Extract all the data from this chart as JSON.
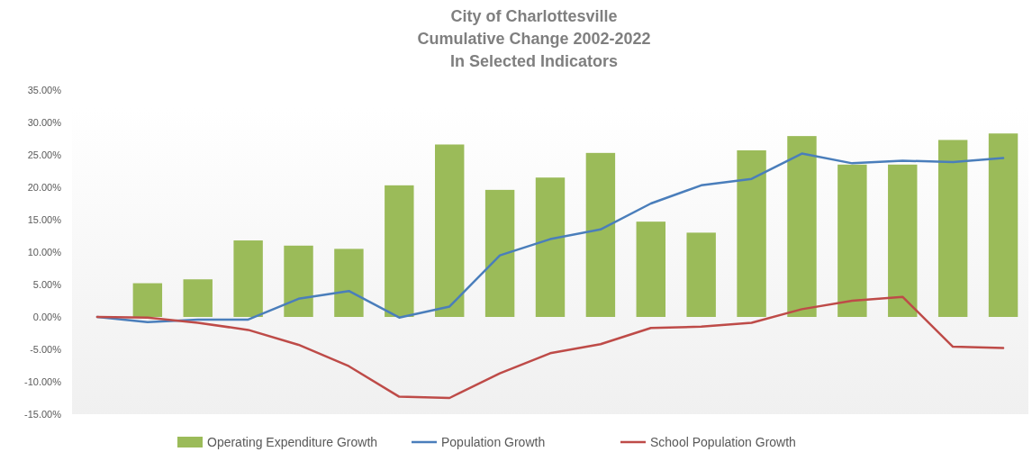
{
  "chart_data": {
    "type": "bar",
    "title": "City of Charlottesville\nCumulative Change 2002-2022\nIn Selected Indicators",
    "categories": [
      null,
      null,
      null,
      null,
      null,
      null,
      null,
      null,
      null,
      null,
      null,
      null,
      null,
      null,
      null,
      null,
      null,
      null,
      null
    ],
    "series": [
      {
        "name": "Operating Expenditure Growth",
        "color": "#9bbb59",
        "values": [
          null,
          5.2,
          5.8,
          11.8,
          11.0,
          10.5,
          20.3,
          26.6,
          19.6,
          21.5,
          25.3,
          14.7,
          13.0,
          25.7,
          27.9,
          23.5,
          23.5,
          27.3,
          28.3
        ]
      },
      {
        "name": "Population Growth",
        "type": "line",
        "color": "#4a7ebb",
        "values": [
          0,
          -0.8,
          -0.4,
          -0.4,
          2.8,
          4.0,
          -0.1,
          1.6,
          9.5,
          12.0,
          13.5,
          17.5,
          20.3,
          21.3,
          25.2,
          23.7,
          24.1,
          23.9,
          24.5
        ]
      },
      {
        "name": "School Population Growth",
        "type": "line",
        "color": "#be4b48",
        "values": [
          0,
          -0.1,
          -0.9,
          -2.0,
          -4.3,
          -7.6,
          -12.3,
          -12.5,
          -8.7,
          -5.6,
          -4.2,
          -1.7,
          -1.5,
          -0.9,
          1.2,
          2.5,
          3.1,
          -4.6,
          -4.8
        ]
      }
    ],
    "ylim": [
      -15,
      35
    ],
    "yticks": [
      {
        "value": -15,
        "label": "-15.00%"
      },
      {
        "value": -10,
        "label": "-10.00%"
      },
      {
        "value": -5,
        "label": "-5.00%"
      },
      {
        "value": 0,
        "label": "0.00%"
      },
      {
        "value": 5,
        "label": "5.00%"
      },
      {
        "value": 10,
        "label": "10.00%"
      },
      {
        "value": 15,
        "label": "15.00%"
      },
      {
        "value": 20,
        "label": "20.00%"
      },
      {
        "value": 25,
        "label": "25.00%"
      },
      {
        "value": 30,
        "label": "30.00%"
      },
      {
        "value": 35,
        "label": "35.00%"
      }
    ],
    "legend": "bottom",
    "marker": "none",
    "line_style": "solid"
  }
}
